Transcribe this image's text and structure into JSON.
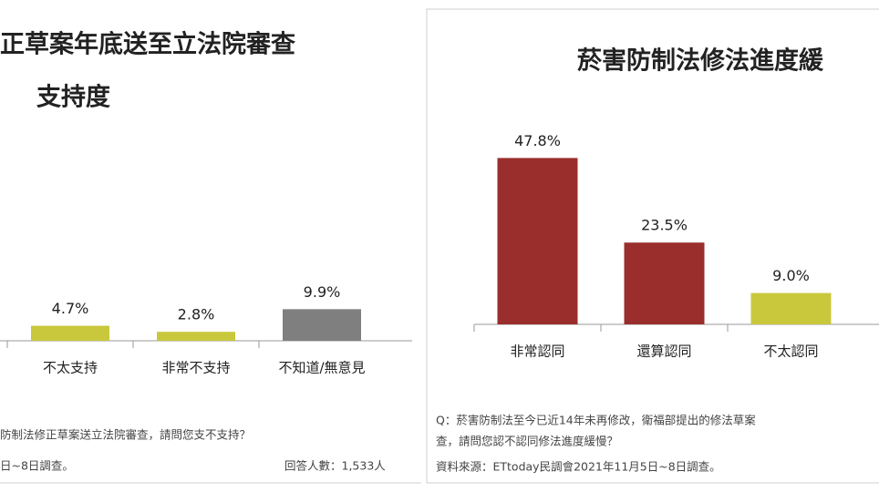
{
  "chart_data": [
    {
      "type": "bar",
      "title": "正草案年底送至立法院審查",
      "subtitle": "支持度",
      "categories": [
        "不太支持",
        "非常不支持",
        "不知道/無意見"
      ],
      "values": [
        4.7,
        2.8,
        9.9
      ],
      "value_labels": [
        "4.7%",
        "2.8%",
        "9.9%"
      ],
      "colors": [
        "#c9c83c",
        "#c9c83c",
        "#7f7f7f"
      ],
      "notes": [
        "防制法修正草案送立法院審查，請問您支不支持？",
        "日~8日調查。",
        "回答人數：1,533人"
      ]
    },
    {
      "type": "bar",
      "title": "菸害防制法修法進度緩",
      "categories": [
        "非常認同",
        "還算認同",
        "不太認同"
      ],
      "values": [
        47.8,
        23.5,
        9.0
      ],
      "value_labels": [
        "47.8%",
        "23.5%",
        "9.0%"
      ],
      "colors": [
        "#9a2e2c",
        "#9a2e2c",
        "#c9c83c"
      ],
      "notes": [
        "Q：菸害防制法至今已近14年未再修改，衛福部提出的修法草案",
        "查，請問您認不認同修法進度緩慢？",
        "資料來源：ETtoday民調會2021年11月5日~8日調查。"
      ]
    }
  ]
}
